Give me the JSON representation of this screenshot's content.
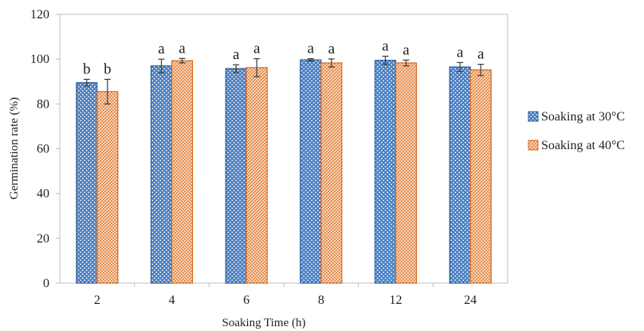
{
  "chart_data": {
    "type": "bar",
    "title": "",
    "xlabel": "Soaking Time (h)",
    "ylabel": "Germination rate (%)",
    "ylim": [
      0,
      120
    ],
    "yticks": [
      0,
      20,
      40,
      60,
      80,
      100,
      120
    ],
    "categories": [
      "2",
      "4",
      "6",
      "8",
      "12",
      "24"
    ],
    "series": [
      {
        "name": "Soaking at 30°C",
        "values": [
          89.5,
          97.0,
          95.8,
          99.7,
          99.5,
          96.5
        ],
        "errors": [
          1.5,
          3.0,
          1.7,
          0.5,
          1.8,
          2.0
        ],
        "labels": [
          "b",
          "a",
          "a",
          "a",
          "a",
          "a"
        ],
        "color": "#4a7fc1",
        "edge": "#2f5f99"
      },
      {
        "name": "Soaking at 40°C",
        "values": [
          85.5,
          99.3,
          96.2,
          98.3,
          98.3,
          95.2
        ],
        "errors": [
          5.5,
          1.0,
          4.0,
          1.8,
          1.3,
          2.5
        ],
        "labels": [
          "b",
          "a",
          "a",
          "a",
          "a",
          "a"
        ],
        "color": "#f0b48a",
        "edge": "#d2691e"
      }
    ],
    "grid": false,
    "legend": "right"
  }
}
